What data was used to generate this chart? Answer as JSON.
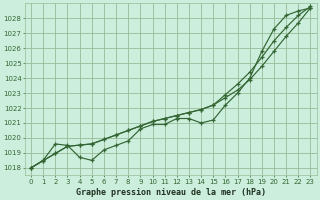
{
  "bg_color": "#cceedd",
  "grid_color": "#99bb99",
  "line_color": "#336633",
  "title": "Graphe pression niveau de la mer (hPa)",
  "title_color": "#223322",
  "ylim": [
    1017.5,
    1029.0
  ],
  "xlim": [
    -0.5,
    23.5
  ],
  "yticks": [
    1018,
    1019,
    1020,
    1021,
    1022,
    1023,
    1024,
    1025,
    1026,
    1027,
    1028
  ],
  "xticks": [
    0,
    1,
    2,
    3,
    4,
    5,
    6,
    7,
    8,
    9,
    10,
    11,
    12,
    13,
    14,
    15,
    16,
    17,
    18,
    19,
    20,
    21,
    22,
    23
  ],
  "line_measured": [
    1018.0,
    1018.5,
    1019.6,
    1019.5,
    1018.7,
    1018.5,
    1019.2,
    1019.5,
    1019.8,
    1020.6,
    1020.9,
    1020.9,
    1021.3,
    1021.3,
    1021.0,
    1021.2,
    1022.2,
    1023.0,
    1024.0,
    1025.8,
    1027.3,
    1028.2,
    1028.5,
    1028.7
  ],
  "line_straight1": [
    1018.0,
    1018.48,
    1018.96,
    1019.44,
    1019.52,
    1019.6,
    1019.9,
    1020.2,
    1020.5,
    1020.8,
    1021.1,
    1021.3,
    1021.5,
    1021.7,
    1021.9,
    1022.2,
    1022.7,
    1023.2,
    1023.9,
    1024.8,
    1025.8,
    1026.8,
    1027.7,
    1028.7
  ],
  "line_straight2": [
    1018.0,
    1018.48,
    1018.96,
    1019.44,
    1019.52,
    1019.6,
    1019.9,
    1020.2,
    1020.5,
    1020.8,
    1021.1,
    1021.3,
    1021.5,
    1021.7,
    1021.9,
    1022.2,
    1022.9,
    1023.6,
    1024.4,
    1025.4,
    1026.5,
    1027.4,
    1028.2,
    1028.8
  ]
}
